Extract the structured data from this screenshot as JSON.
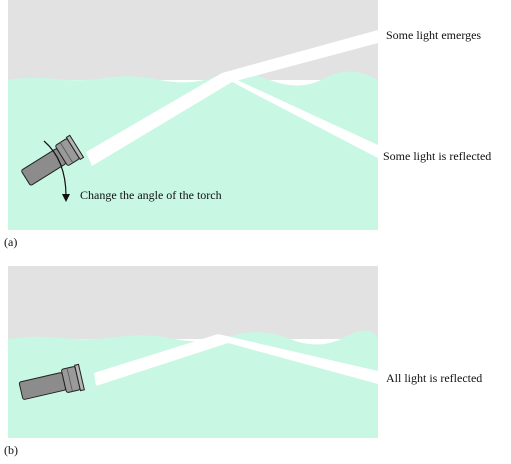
{
  "panel_a": {
    "tag": "(a)",
    "emerge_label": "Some light emerges",
    "reflect_label": "Some light is reflected",
    "rotate_label": "Change the angle of the torch"
  },
  "panel_b": {
    "tag": "(b)",
    "reflect_label": "All light is reflected"
  },
  "colors": {
    "air": "#e2e2e2",
    "water": "#c8f7e4",
    "beam": "#ffffff",
    "torch": "#8c8c8c",
    "torch_outline": "#222222"
  },
  "icons": [
    "torch-icon",
    "rotate-arrow-icon"
  ]
}
